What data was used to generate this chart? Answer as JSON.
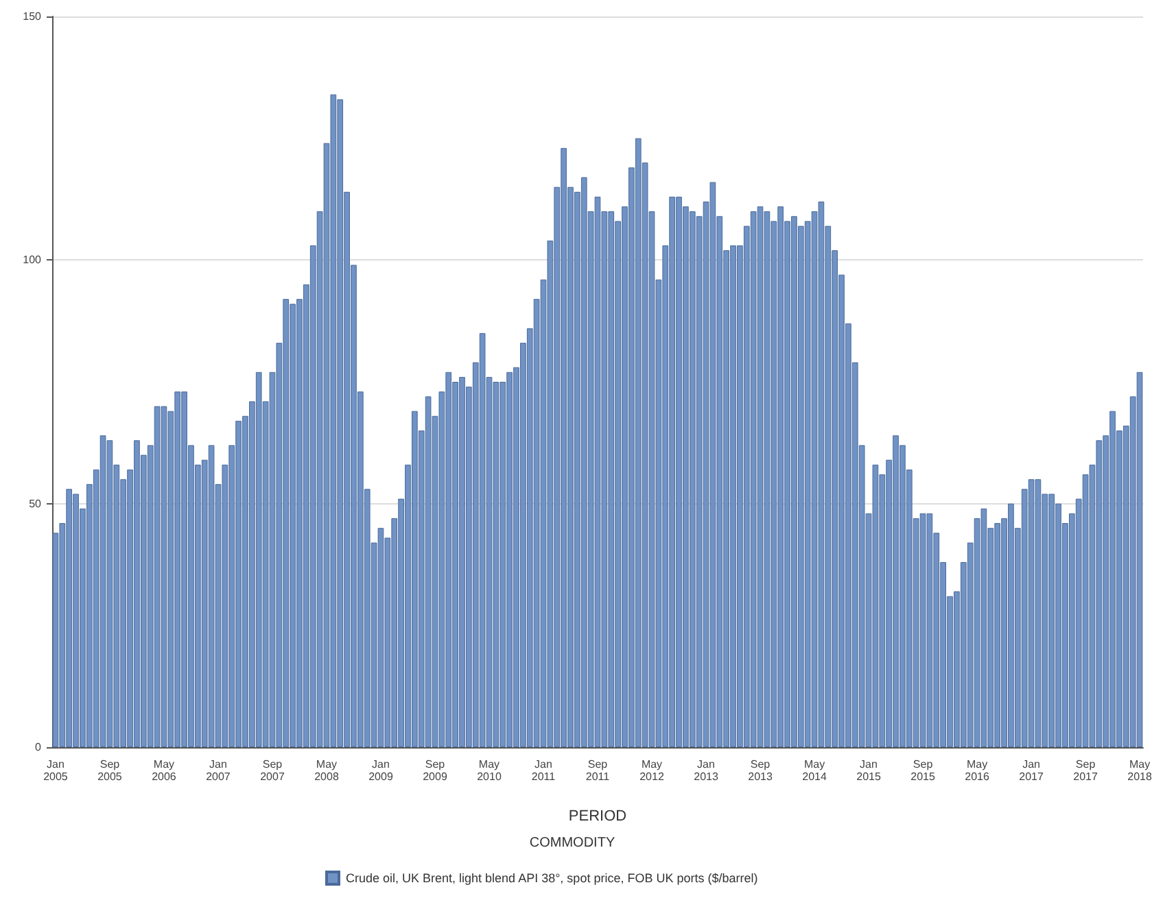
{
  "chart_data": {
    "type": "bar",
    "xlabel": "PERIOD",
    "legend_title": "COMMODITY",
    "categories": [
      "Jan 2005",
      null,
      null,
      null,
      null,
      null,
      null,
      null,
      "Sep 2005",
      null,
      null,
      null,
      null,
      null,
      null,
      null,
      "May 2006",
      null,
      null,
      null,
      null,
      null,
      null,
      null,
      "Jan 2007",
      null,
      null,
      null,
      null,
      null,
      null,
      null,
      "Sep 2007",
      null,
      null,
      null,
      null,
      null,
      null,
      null,
      "May 2008",
      null,
      null,
      null,
      null,
      null,
      null,
      null,
      "Jan 2009",
      null,
      null,
      null,
      null,
      null,
      null,
      null,
      "Sep 2009",
      null,
      null,
      null,
      null,
      null,
      null,
      null,
      "May 2010",
      null,
      null,
      null,
      null,
      null,
      null,
      null,
      "Jan 2011",
      null,
      null,
      null,
      null,
      null,
      null,
      null,
      "Sep 2011",
      null,
      null,
      null,
      null,
      null,
      null,
      null,
      "May 2012",
      null,
      null,
      null,
      null,
      null,
      null,
      null,
      "Jan 2013",
      null,
      null,
      null,
      null,
      null,
      null,
      null,
      "Sep 2013",
      null,
      null,
      null,
      null,
      null,
      null,
      null,
      "May 2014",
      null,
      null,
      null,
      null,
      null,
      null,
      null,
      "Jan 2015",
      null,
      null,
      null,
      null,
      null,
      null,
      null,
      "Sep 2015",
      null,
      null,
      null,
      null,
      null,
      null,
      null,
      "May 2016",
      null,
      null,
      null,
      null,
      null,
      null,
      null,
      "Jan 2017",
      null,
      null,
      null,
      null,
      null,
      null,
      null,
      "Sep 2017",
      null,
      null,
      null,
      null,
      null,
      null,
      null,
      "May 2018"
    ],
    "series": [
      {
        "name": "Crude oil, UK Brent, light blend API 38°, spot price, FOB UK ports ($/barrel)",
        "color": "#7092c4",
        "values": [
          44,
          46,
          53,
          52,
          49,
          54,
          57,
          64,
          63,
          58,
          55,
          57,
          63,
          60,
          62,
          70,
          70,
          69,
          73,
          73,
          62,
          58,
          59,
          62,
          54,
          58,
          62,
          67,
          68,
          71,
          77,
          71,
          77,
          83,
          92,
          91,
          92,
          95,
          103,
          110,
          124,
          134,
          133,
          114,
          99,
          73,
          53,
          42,
          45,
          43,
          47,
          51,
          58,
          69,
          65,
          72,
          68,
          73,
          77,
          75,
          76,
          74,
          79,
          85,
          76,
          75,
          75,
          77,
          78,
          83,
          86,
          92,
          96,
          104,
          115,
          123,
          115,
          114,
          117,
          110,
          113,
          110,
          110,
          108,
          111,
          119,
          125,
          120,
          110,
          96,
          103,
          113,
          113,
          111,
          110,
          109,
          112,
          116,
          109,
          102,
          103,
          103,
          107,
          110,
          111,
          110,
          108,
          111,
          108,
          109,
          107,
          108,
          110,
          112,
          107,
          102,
          97,
          87,
          79,
          62,
          48,
          58,
          56,
          59,
          64,
          62,
          57,
          47,
          48,
          48,
          44,
          38,
          31,
          32,
          38,
          42,
          47,
          49,
          45,
          46,
          47,
          50,
          45,
          53,
          55,
          55,
          52,
          52,
          50,
          46,
          48,
          51,
          56,
          58,
          63,
          64,
          69,
          65,
          66,
          72,
          77
        ]
      }
    ],
    "ylim": [
      0,
      150
    ],
    "yticks": [
      0,
      50,
      100,
      150
    ],
    "grid": "y",
    "legend": "bottom"
  }
}
